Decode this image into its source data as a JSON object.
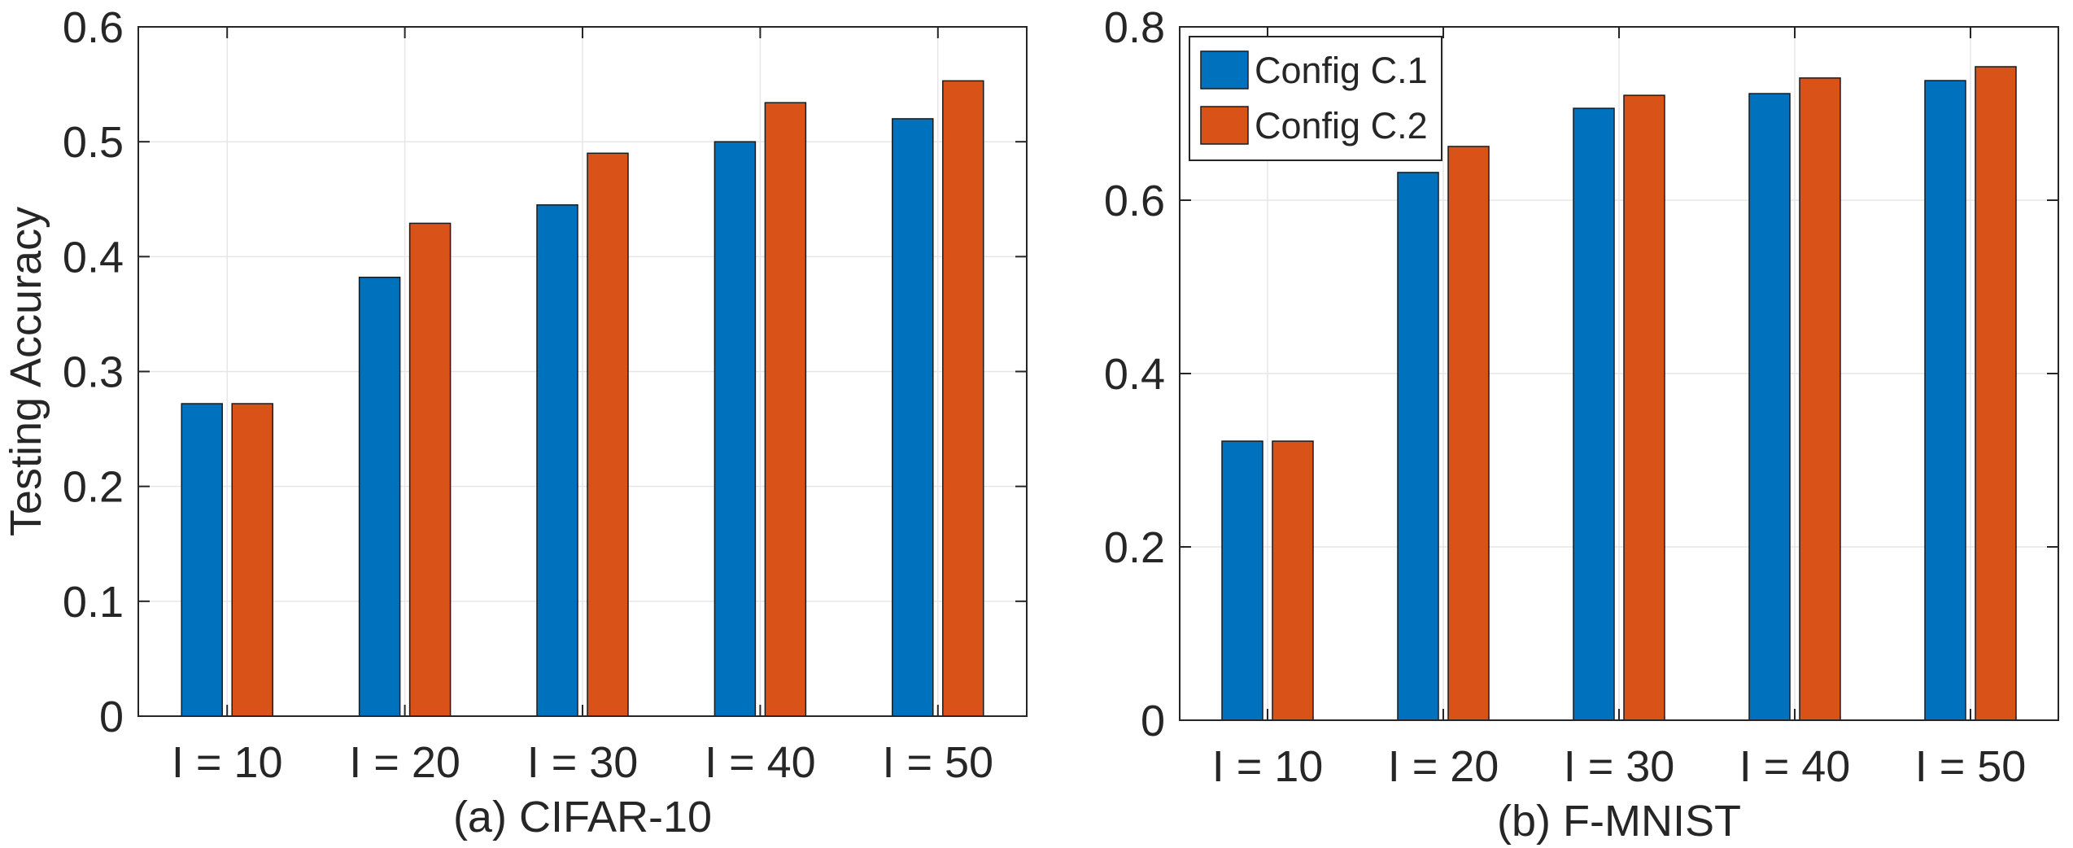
{
  "colors": {
    "series1": "#0072BD",
    "series2": "#D95319",
    "grid": "#e6e6e6",
    "axis": "#262626"
  },
  "chart_data": [
    {
      "type": "bar",
      "caption": "(a) CIFAR-10",
      "title": "",
      "xlabel": "",
      "ylabel": "Testing Accuracy",
      "categories": [
        "I = 10",
        "I = 20",
        "I = 30",
        "I = 40",
        "I = 50"
      ],
      "series": [
        {
          "name": "Config C.1",
          "values": [
            0.272,
            0.382,
            0.445,
            0.5,
            0.52
          ]
        },
        {
          "name": "Config C.2",
          "values": [
            0.272,
            0.429,
            0.49,
            0.534,
            0.553
          ]
        }
      ],
      "ylim": [
        0,
        0.6
      ],
      "yticks": [
        "0",
        "0.1",
        "0.2",
        "0.3",
        "0.4",
        "0.5",
        "0.6"
      ],
      "grid": true,
      "legend": "none"
    },
    {
      "type": "bar",
      "caption": "(b) F-MNIST",
      "title": "",
      "xlabel": "",
      "ylabel": "",
      "categories": [
        "I = 10",
        "I = 20",
        "I = 30",
        "I = 40",
        "I = 50"
      ],
      "series": [
        {
          "name": "Config C.1",
          "values": [
            0.322,
            0.632,
            0.706,
            0.723,
            0.738
          ]
        },
        {
          "name": "Config C.2",
          "values": [
            0.322,
            0.662,
            0.721,
            0.741,
            0.754
          ]
        }
      ],
      "ylim": [
        0,
        0.8
      ],
      "yticks": [
        "0",
        "0.2",
        "0.4",
        "0.6",
        "0.8"
      ],
      "grid": true,
      "legend": "top-left"
    }
  ]
}
